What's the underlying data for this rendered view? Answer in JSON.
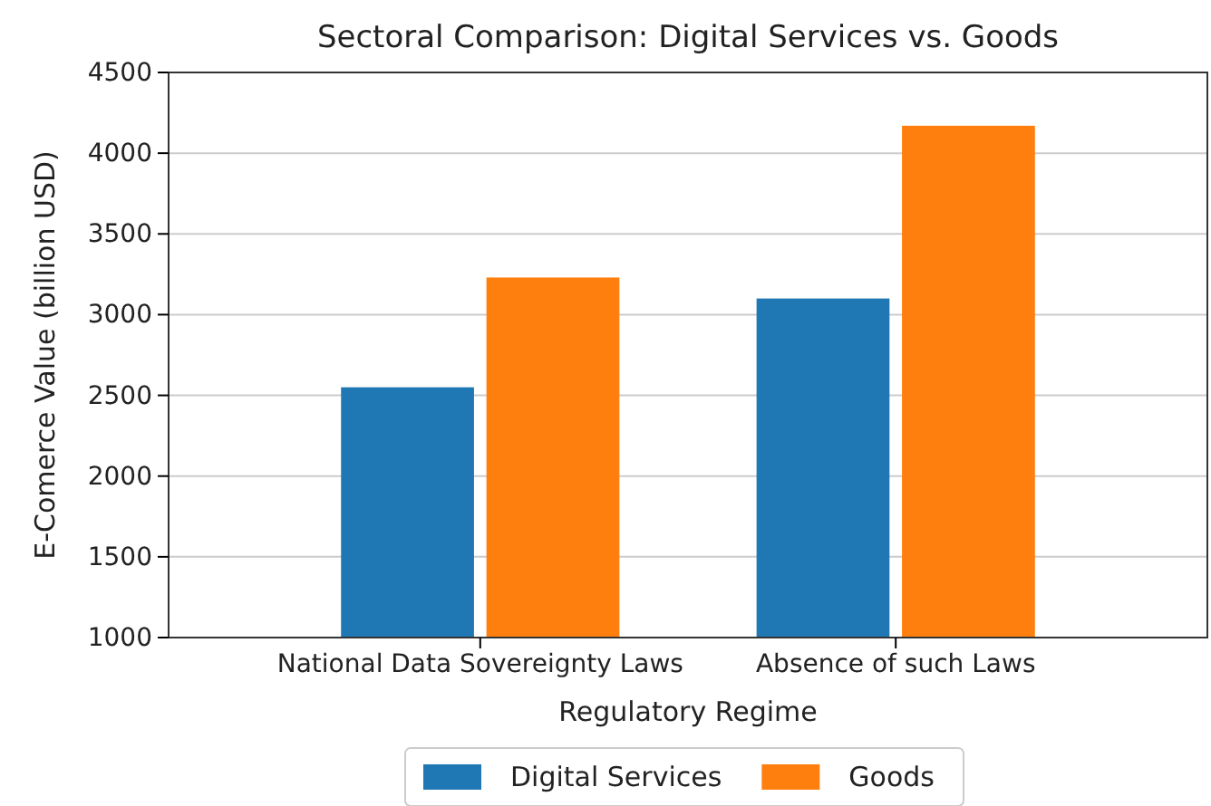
{
  "chart_data": {
    "type": "bar",
    "title": "Sectoral Comparison: Digital Services vs. Goods",
    "xlabel": "Regulatory Regime",
    "ylabel": "E-Comerce Value (billion USD)",
    "categories": [
      "National Data Sovereignty Laws",
      "Absence of such Laws"
    ],
    "series": [
      {
        "name": "Digital Services",
        "color": "#1f77b4",
        "values": [
          2550,
          3100
        ]
      },
      {
        "name": "Goods",
        "color": "#ff7f0e",
        "values": [
          3230,
          4170
        ]
      }
    ],
    "ylim": [
      1000,
      4500
    ],
    "yticks": [
      1000,
      1500,
      2000,
      2500,
      3000,
      3500,
      4000,
      4500
    ],
    "grid": "y",
    "legend": "bottom"
  }
}
